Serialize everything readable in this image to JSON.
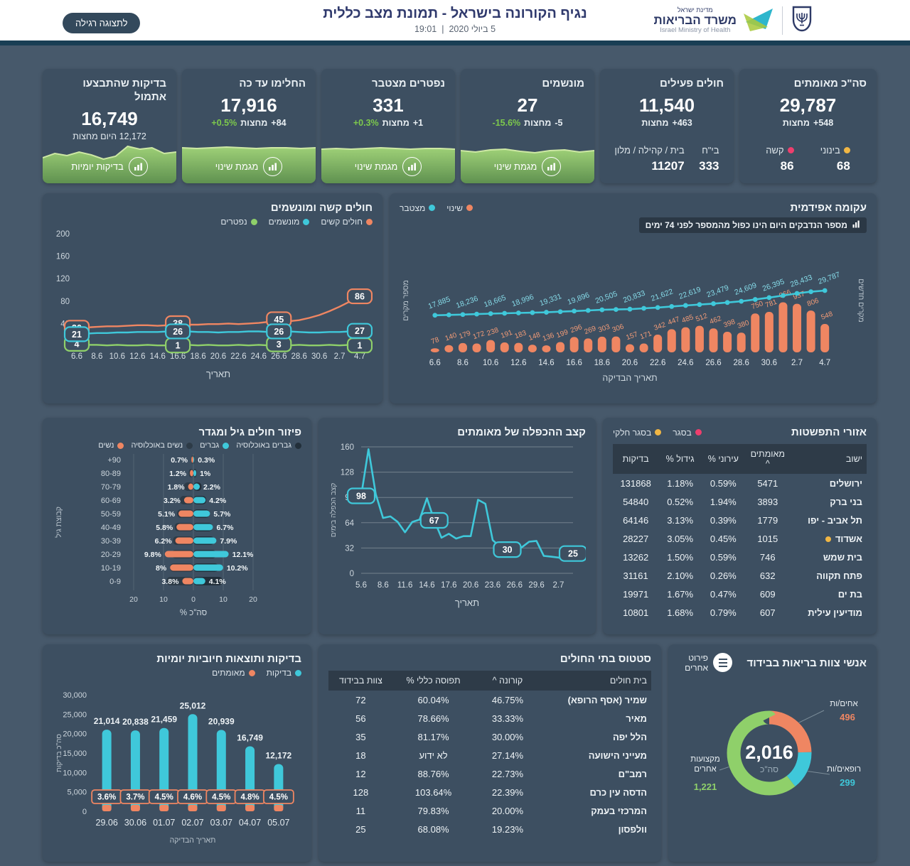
{
  "colors": {
    "teal": "#3fc8da",
    "orange": "#ef8662",
    "green": "#8fd06a",
    "yellow": "#f0b644",
    "pink": "#ee3e6d",
    "men_pop_dark": "#222f3a",
    "women_pop_dark": "#2d3b47",
    "page_bg": "#47596b",
    "card_bg": "#3d4f61"
  },
  "header": {
    "title": "נגיף הקורונה בישראל - תמונת מצב כללית",
    "date": "5 ביולי 2020",
    "separator": "|",
    "time": "19:01",
    "view_button": "לתצוגה רגילה",
    "logo": {
      "line1": "מדינת ישראל",
      "line2": "משרד הבריאות",
      "line3": "Israel Ministry of Health"
    }
  },
  "kpis": [
    {
      "id": "confirmed",
      "title": "סה\"כ מאומתים",
      "value": "29,787",
      "delta": "+548",
      "delta_label": "מחצות",
      "stats": [
        {
          "label": "בינוני",
          "value": "68",
          "color": "#f0b644"
        },
        {
          "label": "קשה",
          "value": "86",
          "color": "#ee3e6d"
        }
      ]
    },
    {
      "id": "active",
      "title": "חולים פעילים",
      "value": "11,540",
      "delta": "+463",
      "delta_label": "מחצות",
      "stats": [
        {
          "label": "בי\"ח",
          "value": "333"
        },
        {
          "label": "בית / קהילה / מלון",
          "value": "11207"
        }
      ]
    },
    {
      "id": "ventilated",
      "title": "מונשמים",
      "value": "27",
      "delta": "-5",
      "delta_label": "מחצות",
      "pct": "-15.6%",
      "link": "מגמת שינוי"
    },
    {
      "id": "deceased",
      "title": "נפטרים מצטבר",
      "value": "331",
      "delta": "+1",
      "delta_label": "מחצות",
      "pct": "+0.3%",
      "link": "מגמת שינוי"
    },
    {
      "id": "recovered",
      "title": "החלימו עד כה",
      "value": "17,916",
      "delta": "+84",
      "delta_label": "מחצות",
      "pct": "+0.5%",
      "link": "מגמת שינוי"
    },
    {
      "id": "tests",
      "title": "בדיקות שהתבצעו אתמול",
      "value": "16,749",
      "sub": "12,172 היום מחצות",
      "link": "בדיקות יומיות"
    }
  ],
  "chart_data": [
    {
      "id": "severe-ventilated",
      "type": "line",
      "title": "חולים קשה ומונשמים",
      "xlabel": "תאריך",
      "x_ticks": [
        "6.6",
        "8.6",
        "10.6",
        "12.6",
        "14.6",
        "16.6",
        "18.6",
        "20.6",
        "22.6",
        "24.6",
        "26.6",
        "28.6",
        "30.6",
        "2.7",
        "4.7"
      ],
      "y_ticks": [
        40,
        80,
        120,
        160,
        200
      ],
      "ylim": [
        0,
        200
      ],
      "legend": [
        {
          "label": "חולים קשים",
          "color": "#ef8662"
        },
        {
          "label": "מונשמים",
          "color": "#3fc8da"
        },
        {
          "label": "נפטרים",
          "color": "#8fd06a"
        }
      ],
      "series": [
        {
          "name": "חולים קשים",
          "color": "#ef8662",
          "values": [
            30,
            33,
            34,
            35,
            35,
            36,
            37,
            37,
            36,
            37,
            38,
            38,
            38,
            39,
            39,
            40,
            39,
            40,
            41,
            43,
            45,
            44,
            46,
            50,
            55,
            62,
            70,
            79,
            86
          ],
          "labels": [
            {
              "i": 0,
              "t": "30"
            },
            {
              "i": 10,
              "t": "38"
            },
            {
              "i": 20,
              "t": "45"
            },
            {
              "i": 28,
              "t": "86"
            }
          ]
        },
        {
          "name": "מונשמים",
          "color": "#3fc8da",
          "values": [
            21,
            22,
            23,
            23,
            24,
            24,
            25,
            25,
            25,
            26,
            26,
            26,
            25,
            25,
            24,
            25,
            25,
            26,
            26,
            25,
            26,
            26,
            25,
            24,
            24,
            25,
            25,
            26,
            27
          ],
          "labels": [
            {
              "i": 0,
              "t": "21"
            },
            {
              "i": 10,
              "t": "26"
            },
            {
              "i": 20,
              "t": "26"
            },
            {
              "i": 28,
              "t": "27"
            }
          ]
        },
        {
          "name": "נפטרים",
          "color": "#8fd06a",
          "values": [
            4,
            2,
            2,
            1,
            2,
            1,
            1,
            2,
            1,
            1,
            1,
            2,
            1,
            2,
            1,
            1,
            2,
            1,
            2,
            1,
            3,
            1,
            2,
            1,
            1,
            2,
            1,
            2,
            1
          ],
          "labels": [
            {
              "i": 0,
              "t": "4"
            },
            {
              "i": 10,
              "t": "1"
            },
            {
              "i": 20,
              "t": "3"
            },
            {
              "i": 28,
              "t": "1"
            }
          ]
        }
      ]
    },
    {
      "id": "epidemic-curve",
      "type": "combo",
      "title": "עקומה אפידמית",
      "note": "מספר הנדבקים היום הינו כפול מהמספר לפני 74 ימים",
      "xlabel": "תאריך הבדיקה",
      "ylabel_left": "מספר מקרים",
      "ylabel_right": "מקרים חדשים",
      "x_ticks": [
        "6.6",
        "8.6",
        "10.6",
        "12.6",
        "14.6",
        "16.6",
        "18.6",
        "20.6",
        "22.6",
        "24.6",
        "26.6",
        "28.6",
        "30.6",
        "2.7",
        "4.7"
      ],
      "legend": [
        {
          "label": "שינוי",
          "color": "#ef8662"
        },
        {
          "label": "מצטבר",
          "color": "#3fc8da"
        }
      ],
      "bars": {
        "name": "שינוי",
        "color": "#ef8662",
        "values": [
          78,
          140,
          179,
          172,
          238,
          191,
          183,
          148,
          136,
          199,
          296,
          269,
          303,
          306,
          157,
          171,
          342,
          447,
          485,
          512,
          462,
          398,
          380,
          750,
          781,
          966,
          937,
          806,
          548
        ]
      },
      "line": {
        "name": "מצטבר",
        "color": "#3fc8da",
        "label_values": [
          "17,885",
          "18,236",
          "18,665",
          "18,996",
          "19,331",
          "19,896",
          "20,505",
          "20,833",
          "21,622",
          "22,619",
          "23,479",
          "24,609",
          "26,395",
          "28,433",
          "29,787"
        ],
        "values": [
          17885,
          18060,
          18236,
          18450,
          18665,
          18830,
          18996,
          19160,
          19331,
          19610,
          19896,
          20200,
          20505,
          20670,
          20833,
          21230,
          21622,
          22120,
          22619,
          23050,
          23479,
          24040,
          24609,
          25500,
          26395,
          27400,
          28433,
          29240,
          29787
        ]
      }
    },
    {
      "id": "age-gender",
      "type": "pyramid",
      "title": "פיזור חולים גיל ומגדר",
      "xlabel": "% סה\"כ",
      "ylabel": "קבוצת גיל",
      "x_ticks": [
        "20",
        "10",
        "0",
        "10",
        "20"
      ],
      "legend": [
        {
          "label": "גברים באוכלוסיה",
          "color": "#222f3a"
        },
        {
          "label": "גברים",
          "color": "#3fc8da"
        },
        {
          "label": "נשים באוכלוסיה",
          "color": "#2d3b47"
        },
        {
          "label": "נשים",
          "color": "#ef8662"
        }
      ],
      "ages": [
        "+90",
        "80-89",
        "70-79",
        "60-69",
        "50-59",
        "40-49",
        "30-39",
        "20-29",
        "10-19",
        "0-9"
      ],
      "women": {
        "values": [
          0.7,
          1.2,
          1.8,
          3.2,
          5.1,
          5.8,
          6.2,
          9.8,
          8,
          3.8
        ],
        "labels": [
          "0.7%",
          "1.2%",
          "1.8%",
          "3.2%",
          "5.1%",
          "5.8%",
          "6.2%",
          "9.8%",
          "8%",
          "3.8%"
        ]
      },
      "men": {
        "values": [
          0.3,
          1,
          2.2,
          4.2,
          5.7,
          6.7,
          7.9,
          12.1,
          10.2,
          4.1
        ],
        "labels": [
          "0.3%",
          "1%",
          "2.2%",
          "4.2%",
          "5.7%",
          "6.7%",
          "7.9%",
          "12.1%",
          "10.2%",
          "4.1%"
        ]
      },
      "women_pop": [
        0.7,
        1.6,
        3.2,
        4.6,
        5.6,
        6.4,
        7.0,
        7.4,
        8.0,
        9.2
      ],
      "men_pop": [
        0.4,
        1.1,
        2.8,
        4.4,
        5.5,
        6.5,
        7.2,
        7.8,
        8.6,
        10.0
      ]
    },
    {
      "id": "doubling-rate",
      "type": "line",
      "title": "קצב ההכפלה של מאומתים",
      "xlabel": "תאריך",
      "ylabel": "קצב הכפלה בימים",
      "x_ticks": [
        "5.6",
        "8.6",
        "11.6",
        "14.6",
        "17.6",
        "20.6",
        "23.6",
        "26.6",
        "29.6",
        "2.7"
      ],
      "y_ticks": [
        0,
        32,
        64,
        96,
        128,
        160
      ],
      "ylim": [
        0,
        160
      ],
      "color": "#3fc8da",
      "values": [
        98,
        157,
        100,
        70,
        72,
        65,
        52,
        65,
        68,
        95,
        67,
        45,
        50,
        44,
        47,
        47,
        93,
        88,
        42,
        34,
        30,
        28,
        33,
        40,
        41,
        22,
        21,
        20,
        17,
        25
      ],
      "labels": [
        {
          "i": 0,
          "t": "98"
        },
        {
          "i": 10,
          "t": "67"
        },
        {
          "i": 20,
          "t": "30"
        },
        {
          "i": 29,
          "t": "25"
        }
      ]
    },
    {
      "id": "spread-areas",
      "type": "table",
      "title": "אזורי התפשטות",
      "legend": [
        {
          "label": "בסגר",
          "color": "#ee3e6d"
        },
        {
          "label": "בסגר חלקי",
          "color": "#f0b644"
        }
      ],
      "columns": [
        "ישוב",
        "מאומתים ^",
        "עירוני %",
        "גידול %",
        "בדיקות"
      ],
      "rows": [
        {
          "cells": [
            "ירושלים",
            "5471",
            "0.59%",
            "1.18%",
            "131868"
          ]
        },
        {
          "cells": [
            "בני ברק",
            "3893",
            "1.94%",
            "0.52%",
            "54840"
          ]
        },
        {
          "cells": [
            "תל אביב - יפו",
            "1779",
            "0.39%",
            "3.13%",
            "64146"
          ]
        },
        {
          "cells": [
            "אשדוד",
            "1015",
            "0.45%",
            "3.05%",
            "28227"
          ],
          "dot": "#f0b644"
        },
        {
          "cells": [
            "בית שמש",
            "746",
            "0.59%",
            "1.50%",
            "13262"
          ]
        },
        {
          "cells": [
            "פתח תקווה",
            "632",
            "0.26%",
            "2.10%",
            "31161"
          ]
        },
        {
          "cells": [
            "בת ים",
            "609",
            "0.47%",
            "1.67%",
            "19971"
          ]
        },
        {
          "cells": [
            "מודיעין עילית",
            "607",
            "0.79%",
            "1.68%",
            "10801"
          ]
        }
      ]
    },
    {
      "id": "daily-tests",
      "type": "bar",
      "title": "בדיקות ותוצאות חיוביות יומיות",
      "xlabel": "תאריך הבדיקה",
      "ylabel": "סה\"כ בדיקות",
      "legend": [
        {
          "label": "בדיקות",
          "color": "#3fc8da"
        },
        {
          "label": "מאומתים",
          "color": "#ef8662"
        }
      ],
      "categories": [
        "29.06",
        "30.06",
        "01.07",
        "02.07",
        "03.07",
        "04.07",
        "05.07"
      ],
      "tests": [
        21014,
        20838,
        21459,
        25012,
        20939,
        16749,
        12172
      ],
      "test_labels": [
        "21,014",
        "20,838",
        "21,459",
        "25,012",
        "20,939",
        "16,749",
        "12,172"
      ],
      "positive_pct": [
        "3.6%",
        "3.7%",
        "4.5%",
        "4.6%",
        "4.5%",
        "4.8%",
        "4.5%"
      ],
      "y_ticks": [
        "0",
        "5,000",
        "10,000",
        "15,000",
        "20,000",
        "25,000",
        "30,000"
      ],
      "ylim": [
        0,
        30000
      ]
    },
    {
      "id": "hospital-status",
      "type": "table",
      "title": "סטטוס בתי החולים",
      "columns": [
        "בית חולים",
        "קורונה ^",
        "תפוסה כללי %",
        "צוות בבידוד"
      ],
      "rows": [
        {
          "cells": [
            "שמיר (אסף הרופא)",
            "46.75%",
            "60.04%",
            "72"
          ]
        },
        {
          "cells": [
            "מאיר",
            "33.33%",
            "78.66%",
            "56"
          ]
        },
        {
          "cells": [
            "הלל יפה",
            "30.00%",
            "81.17%",
            "35"
          ]
        },
        {
          "cells": [
            "מעייני הישועה",
            "27.14%",
            "לא ידוע",
            "18"
          ]
        },
        {
          "cells": [
            "רמב\"ם",
            "22.73%",
            "88.76%",
            "12"
          ]
        },
        {
          "cells": [
            "הדסה עין כרם",
            "22.39%",
            "103.64%",
            "128"
          ]
        },
        {
          "cells": [
            "המרכזי בעמק",
            "20.00%",
            "79.83%",
            "11"
          ]
        },
        {
          "cells": [
            "וולפסון",
            "19.23%",
            "68.08%",
            "25"
          ]
        }
      ]
    },
    {
      "id": "staff-isolation",
      "type": "pie",
      "title": "אנשי צוות בריאות בבידוד",
      "button": "פירוט אחרים",
      "center_value": "2,016",
      "center_label": "סה\"כ",
      "segments": [
        {
          "label": "אחים/ות",
          "value": 496,
          "display": "496",
          "color": "#ef8662"
        },
        {
          "label": "רופאים/ות",
          "value": 299,
          "display": "299",
          "color": "#3fc8da"
        },
        {
          "label": "מקצועות אחרים",
          "value": 1221,
          "display": "1,221",
          "color": "#8fd06a"
        }
      ]
    }
  ]
}
